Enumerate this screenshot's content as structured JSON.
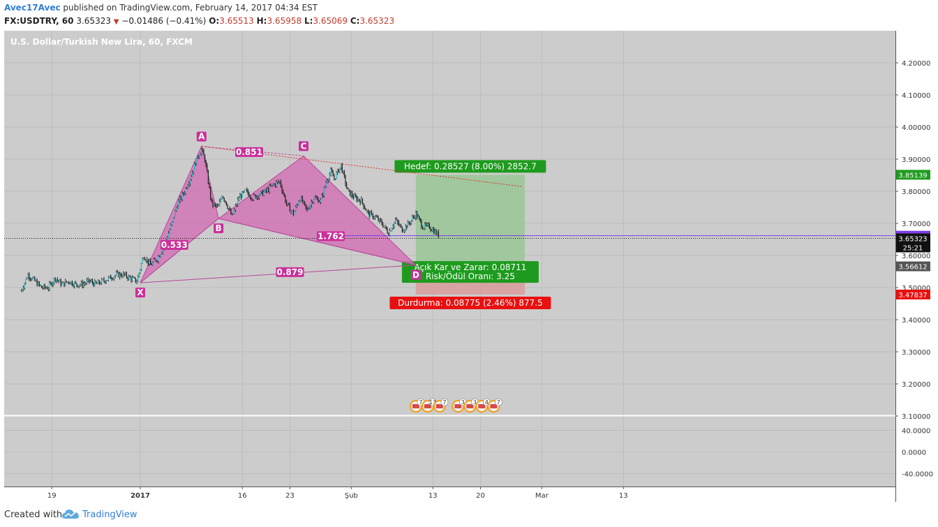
{
  "header": {
    "author": "Avec17Avec",
    "published": "published on TradingView.com, February 14, 2017 04:34 EST",
    "symbol": "FX:USDTRY, 60",
    "last": "3.65323",
    "change": "−0.01486 (−0.41%)",
    "o_label": "O:",
    "o_value": "3.65513",
    "h_label": "H:",
    "h_value": "3.65958",
    "l_label": "L:",
    "l_value": "3.65069",
    "c_label": "C:",
    "c_value": "3.65323"
  },
  "chart_title": "U.S. Dollar/Turkish New Lira, 60, FXCM",
  "footer": {
    "created": "Created with",
    "brand": "TradingView"
  },
  "colors": {
    "background": "#cccccc",
    "grid": "#bdbdbd",
    "candles": "#1f1f1f",
    "pattern_fill": "#d26fb4",
    "pattern_stroke": "#b8469a",
    "label_bg": "#c9309a",
    "target_zone": "#9cc69a",
    "stop_zone": "#d89e9e",
    "target_label": "#1e9b1e",
    "stop_label": "#e81010",
    "trend_line": "#e0302a",
    "horizontal_line": "#7b3fe4"
  },
  "chart_data": {
    "type": "line",
    "title": "U.S. Dollar/Turkish New Lira, 60, FXCM",
    "x_ticks": [
      "19",
      "2017",
      "16",
      "23",
      "Şub",
      "13",
      "20",
      "Mar",
      "13"
    ],
    "x_tick_days": [
      -13,
      0,
      15,
      22,
      31,
      43,
      50,
      59,
      71
    ],
    "price_axis": {
      "ylim": [
        3.08,
        4.27
      ],
      "ticks": [
        "4.20000",
        "4.10000",
        "4.00000",
        "3.90000",
        "3.80000",
        "3.70000",
        "3.60000",
        "3.50000",
        "3.40000",
        "3.30000",
        "3.20000",
        "3.10000"
      ],
      "tick_values": [
        4.2,
        4.1,
        4.0,
        3.9,
        3.8,
        3.7,
        3.6,
        3.5,
        3.4,
        3.3,
        3.2,
        3.1
      ]
    },
    "price_labels": [
      {
        "text": "3.85139",
        "value": 3.85139,
        "color": "#1e9b1e"
      },
      {
        "text": "3.66166",
        "value": 3.66166,
        "color": "#7b3fe4"
      },
      {
        "text": "3.65323",
        "value": 3.65323,
        "color": "#111111"
      },
      {
        "text": "25:21",
        "value": 3.625,
        "color": "#111111"
      },
      {
        "text": "3.56612",
        "value": 3.56612,
        "color": "#555555"
      },
      {
        "text": "3.47837",
        "value": 3.47837,
        "color": "#e81010"
      }
    ],
    "oscillator_axis": {
      "ylim": [
        -50,
        50
      ],
      "ticks": [
        "40.0000",
        "0.0000",
        "-40.0000"
      ],
      "tick_values": [
        40,
        0,
        -40
      ]
    },
    "series": [
      {
        "x": [
          -17.5,
          -16.5,
          -15.5,
          -14.5,
          -13.5,
          -12.5,
          -11.5,
          -10.5,
          -9.5,
          -8.5,
          -7.5,
          -6.5,
          -5.5,
          -4.5,
          -3.5,
          -2.5,
          -1.5,
          -0.5,
          0.5,
          1.5,
          2.5,
          3.5,
          4.5,
          5.5,
          6.5,
          7.5,
          8.5,
          9.0,
          9.5,
          10.5,
          11.5,
          12.0,
          12.5,
          13.5,
          14.5,
          15.5,
          16.5,
          17.5,
          18.5,
          19.5,
          20.5,
          21.5,
          22.5,
          23.5,
          24.5,
          25.5,
          26.5,
          27.5,
          28.0,
          28.5,
          29.5,
          30.5,
          31.5,
          32.5,
          33.5,
          34.5,
          35.5,
          36.5,
          37.5,
          38.5,
          39.5,
          40.5,
          41.5,
          42.5,
          43.5,
          44.0
        ],
        "y": [
          3.49,
          3.54,
          3.52,
          3.5,
          3.5,
          3.53,
          3.51,
          3.52,
          3.51,
          3.51,
          3.52,
          3.51,
          3.52,
          3.53,
          3.54,
          3.54,
          3.53,
          3.52,
          3.6,
          3.57,
          3.59,
          3.63,
          3.69,
          3.76,
          3.8,
          3.85,
          3.91,
          3.93,
          3.9,
          3.76,
          3.75,
          3.79,
          3.77,
          3.72,
          3.78,
          3.8,
          3.78,
          3.79,
          3.8,
          3.82,
          3.83,
          3.76,
          3.73,
          3.78,
          3.74,
          3.78,
          3.77,
          3.84,
          3.86,
          3.84,
          3.88,
          3.8,
          3.78,
          3.77,
          3.73,
          3.72,
          3.7,
          3.67,
          3.71,
          3.68,
          3.7,
          3.73,
          3.69,
          3.69,
          3.67,
          3.66
        ]
      }
    ],
    "pattern_points": [
      {
        "label": "X",
        "x": 0.0,
        "y": 3.515
      },
      {
        "label": "A",
        "x": 9.0,
        "y": 3.94
      },
      {
        "label": "B",
        "x": 11.5,
        "y": 3.715
      },
      {
        "label": "C",
        "x": 24.0,
        "y": 3.91
      },
      {
        "label": "D",
        "x": 40.5,
        "y": 3.57
      }
    ],
    "ratio_labels": [
      {
        "text": "0.851",
        "x": 16.0,
        "y": 3.922
      },
      {
        "text": "0.533",
        "x": 5.0,
        "y": 3.633
      },
      {
        "text": "1.762",
        "x": 28.0,
        "y": 3.66
      },
      {
        "text": "0.879",
        "x": 22.0,
        "y": 3.548
      }
    ],
    "position": {
      "x_start": 40.5,
      "x_end": 56.5,
      "entry": 3.56612,
      "target": 3.85139,
      "stop": 3.47837,
      "target_label": "Hedef: 0.28527 (8.00%) 2852.7",
      "stop_label": "Durdurma: 0.08775 (2.46%) 877.5",
      "center_label_1": "Açık Kar ve Zarar: 0.08711",
      "center_label_2": "Risk/Ödül Oranı: 3.25"
    },
    "trend_line": {
      "x1": 9.0,
      "y1": 3.94,
      "x2": 56.0,
      "y2": 3.815
    },
    "horizontal_line": {
      "x1": 30.0,
      "x2": 70.0,
      "y": 3.66166
    },
    "last_price_line": 3.65323,
    "event_groups": [
      {
        "x": 40.5,
        "labels": [
          "7",
          "13",
          "7"
        ]
      },
      {
        "x": 46.7,
        "labels": [
          "3",
          "3",
          "4",
          "7"
        ]
      }
    ]
  }
}
